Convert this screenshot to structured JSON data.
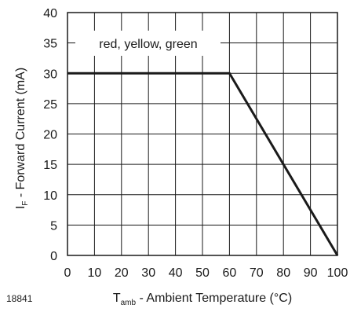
{
  "chart_data": {
    "type": "line",
    "figure_id": "18841",
    "annotation": "red, yellow, green",
    "ylabel": {
      "prefix": "I",
      "sub": "F",
      "rest": " - Forward Current (mA)"
    },
    "xlabel": {
      "prefix": "T",
      "sub": "amb",
      "rest": " - Ambient Temperature (°C)"
    },
    "xlim": [
      0,
      100
    ],
    "ylim": [
      0,
      40
    ],
    "xticks": [
      0,
      10,
      20,
      30,
      40,
      50,
      60,
      70,
      80,
      90,
      100
    ],
    "yticks": [
      0,
      5,
      10,
      15,
      20,
      25,
      30,
      35,
      40
    ],
    "grid": true,
    "series": [
      {
        "x": [
          0,
          60,
          100
        ],
        "y": [
          30,
          30,
          0
        ]
      }
    ]
  }
}
